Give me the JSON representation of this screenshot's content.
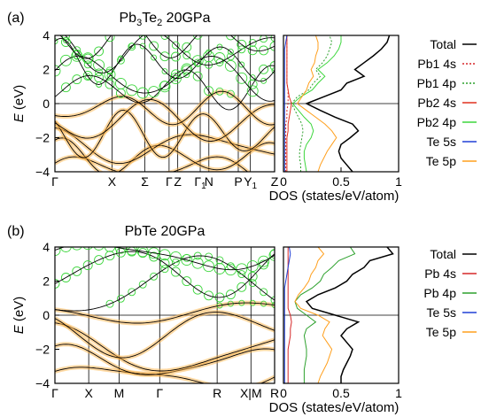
{
  "chart_data": [
    {
      "type": "band_structure_with_dos",
      "panel_label": "(a)",
      "title_parts": [
        "Pb",
        "3",
        "Te",
        "2",
        " 20GPa"
      ],
      "band": {
        "ylabel": "E (eV)",
        "ylim": [
          -4,
          4
        ],
        "yticks": [
          "-4",
          "-2",
          "0",
          "2",
          "4"
        ],
        "kpoints": [
          {
            "label": "Γ",
            "x": 0.0
          },
          {
            "label": "X",
            "x": 0.33
          },
          {
            "label": "Σ",
            "x": 0.52
          },
          {
            "label": "Γ",
            "x": 0.66
          },
          {
            "label": "Z",
            "x": 0.71
          },
          {
            "label": "Γ",
            "sub": "1",
            "x": 0.84
          },
          {
            "label": "N",
            "x": 0.89
          },
          {
            "label": "P",
            "x": 1.06
          },
          {
            "label": "Y",
            "sub": "1",
            "x": 1.13
          },
          {
            "label": "Z",
            "x": 1.27
          }
        ]
      },
      "dos": {
        "xlabel": "DOS (states/eV/atom)",
        "xlim": [
          0,
          1
        ],
        "xticks": [
          "0",
          "0.5",
          "1"
        ],
        "energies": [
          -4,
          -3.6,
          -3.2,
          -2.8,
          -2.4,
          -2.0,
          -1.6,
          -1.2,
          -0.8,
          -0.4,
          0.0,
          0.4,
          0.8,
          1.2,
          1.6,
          2.0,
          2.4,
          2.8,
          3.2,
          3.6,
          4.0
        ],
        "series": [
          {
            "name": "Total",
            "color": "#000000",
            "dash": "solid",
            "values": [
              0.6,
              0.55,
              0.5,
              0.48,
              0.5,
              0.58,
              0.65,
              0.6,
              0.45,
              0.32,
              0.2,
              0.35,
              0.5,
              0.55,
              0.7,
              0.62,
              0.7,
              0.78,
              0.85,
              0.9,
              0.92
            ]
          },
          {
            "name": "Pb1 4s",
            "color": "#d62728",
            "dash": "dotted",
            "values": [
              0.02,
              0.02,
              0.02,
              0.02,
              0.02,
              0.02,
              0.02,
              0.02,
              0.03,
              0.03,
              0.04,
              0.04,
              0.04,
              0.03,
              0.03,
              0.03,
              0.03,
              0.03,
              0.03,
              0.03,
              0.03
            ]
          },
          {
            "name": "Pb1 4p",
            "color": "#2ca02c",
            "dash": "dotted",
            "values": [
              0.15,
              0.15,
              0.14,
              0.14,
              0.15,
              0.16,
              0.17,
              0.16,
              0.13,
              0.1,
              0.07,
              0.12,
              0.22,
              0.26,
              0.32,
              0.28,
              0.34,
              0.38,
              0.4,
              0.42,
              0.4
            ]
          },
          {
            "name": "Pb2 4s",
            "color": "#e0301e",
            "dash": "solid",
            "values": [
              0.03,
              0.03,
              0.03,
              0.03,
              0.03,
              0.03,
              0.04,
              0.04,
              0.05,
              0.06,
              0.07,
              0.05,
              0.04,
              0.03,
              0.03,
              0.03,
              0.03,
              0.03,
              0.03,
              0.03,
              0.03
            ]
          },
          {
            "name": "Pb2 4p",
            "color": "#3cd63c",
            "dash": "solid",
            "values": [
              0.2,
              0.19,
              0.18,
              0.18,
              0.2,
              0.24,
              0.26,
              0.24,
              0.18,
              0.13,
              0.08,
              0.15,
              0.25,
              0.3,
              0.36,
              0.3,
              0.38,
              0.44,
              0.48,
              0.5,
              0.5
            ]
          },
          {
            "name": "Te 5s",
            "color": "#1f3fd6",
            "dash": "solid",
            "values": [
              0.01,
              0.01,
              0.01,
              0.01,
              0.01,
              0.01,
              0.01,
              0.01,
              0.01,
              0.01,
              0.01,
              0.01,
              0.01,
              0.01,
              0.01,
              0.01,
              0.01,
              0.01,
              0.01,
              0.02,
              0.03
            ]
          },
          {
            "name": "Te 5p",
            "color": "#ff9f1c",
            "dash": "solid",
            "values": [
              0.3,
              0.32,
              0.35,
              0.38,
              0.42,
              0.46,
              0.42,
              0.36,
              0.28,
              0.2,
              0.12,
              0.16,
              0.2,
              0.22,
              0.26,
              0.24,
              0.27,
              0.28,
              0.3,
              0.3,
              0.28
            ]
          }
        ]
      }
    },
    {
      "type": "band_structure_with_dos",
      "panel_label": "(b)",
      "title_parts": [
        "PbTe 20GPa"
      ],
      "band": {
        "ylabel": "E (eV)",
        "ylim": [
          -4,
          4
        ],
        "yticks": [
          "-4",
          "-2",
          "0",
          "2",
          "4"
        ],
        "kpoints": [
          {
            "label": "Γ",
            "x": 0.0
          },
          {
            "label": "X",
            "x": 0.2
          },
          {
            "label": "M",
            "x": 0.38
          },
          {
            "label": "Γ",
            "x": 0.62
          },
          {
            "label": "R",
            "x": 0.96
          },
          {
            "label": "X|M",
            "x": 1.16
          },
          {
            "label": "R",
            "x": 1.3
          }
        ]
      },
      "dos": {
        "xlabel": "DOS (states/eV/atom)",
        "xlim": [
          0,
          1
        ],
        "xticks": [
          "0",
          "0.5",
          "1"
        ],
        "energies": [
          -4,
          -3.6,
          -3.2,
          -2.8,
          -2.4,
          -2.0,
          -1.6,
          -1.2,
          -0.8,
          -0.4,
          0.0,
          0.4,
          0.8,
          1.2,
          1.6,
          2.0,
          2.4,
          2.8,
          3.2,
          3.6,
          4.0
        ],
        "series": [
          {
            "name": "Total",
            "color": "#000000",
            "dash": "solid",
            "values": [
              0.5,
              0.5,
              0.52,
              0.55,
              0.58,
              0.6,
              0.55,
              0.5,
              0.55,
              0.65,
              0.45,
              0.25,
              0.2,
              0.3,
              0.45,
              0.55,
              0.6,
              0.7,
              0.75,
              0.95,
              0.9
            ]
          },
          {
            "name": "Pb 4s",
            "color": "#d62728",
            "dash": "solid",
            "values": [
              0.04,
              0.04,
              0.04,
              0.04,
              0.04,
              0.04,
              0.05,
              0.06,
              0.06,
              0.07,
              0.06,
              0.04,
              0.04,
              0.04,
              0.04,
              0.04,
              0.04,
              0.04,
              0.04,
              0.04,
              0.04
            ]
          },
          {
            "name": "Pb 4p",
            "color": "#2ca02c",
            "dash": "solid",
            "values": [
              0.18,
              0.18,
              0.18,
              0.19,
              0.2,
              0.2,
              0.19,
              0.18,
              0.2,
              0.28,
              0.2,
              0.12,
              0.1,
              0.15,
              0.25,
              0.32,
              0.35,
              0.42,
              0.48,
              0.62,
              0.58
            ]
          },
          {
            "name": "Te 5s",
            "color": "#1f3fd6",
            "dash": "solid",
            "values": [
              0.01,
              0.01,
              0.01,
              0.01,
              0.01,
              0.01,
              0.01,
              0.01,
              0.01,
              0.01,
              0.01,
              0.01,
              0.01,
              0.01,
              0.01,
              0.02,
              0.03,
              0.04,
              0.05,
              0.06,
              0.05
            ]
          },
          {
            "name": "Te 5p",
            "color": "#ff9f1c",
            "dash": "solid",
            "values": [
              0.3,
              0.32,
              0.35,
              0.38,
              0.4,
              0.42,
              0.38,
              0.34,
              0.36,
              0.4,
              0.3,
              0.15,
              0.1,
              0.13,
              0.18,
              0.22,
              0.24,
              0.28,
              0.3,
              0.35,
              0.3
            ]
          }
        ]
      }
    }
  ]
}
